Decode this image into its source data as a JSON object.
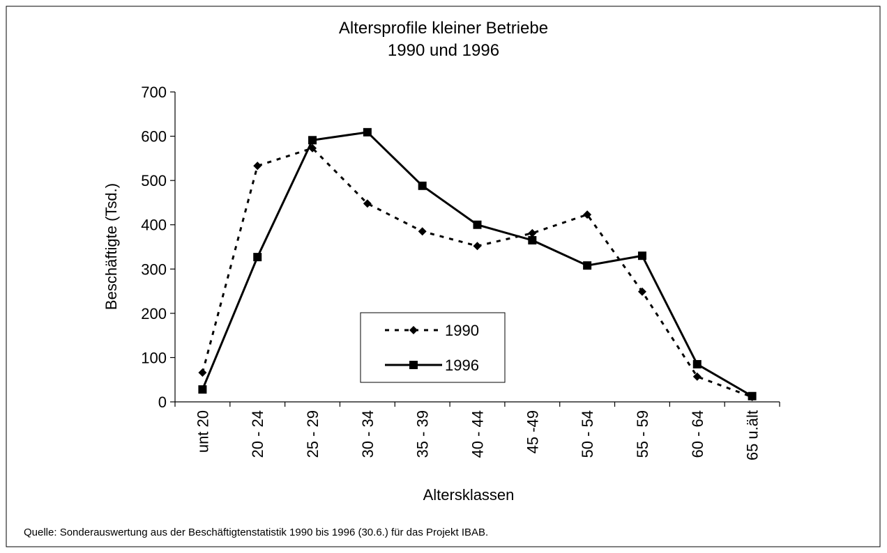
{
  "chart_data": {
    "type": "line",
    "title": "Altersprofile kleiner Betriebe",
    "subtitle": "1990 und 1996",
    "x_label": "Altersklassen",
    "y_label": "Beschäftigte (Tsd.)",
    "source": "Quelle: Sonderauswertung aus der Beschäftigtenstatistik 1990 bis 1996 (30.6.) für das Projekt IBAB.",
    "categories": [
      "unt 20",
      "20 - 24",
      "25 - 29",
      "30 - 34",
      "35 - 39",
      "40 - 44",
      "45 -49",
      "50 - 54",
      "55 - 59",
      "60 - 64",
      "65 u.ält"
    ],
    "series": [
      {
        "name": "1990",
        "color": "#000000",
        "line_style": "dotted",
        "marker": "diamond",
        "values": [
          66,
          533,
          573,
          448,
          385,
          352,
          381,
          423,
          249,
          57,
          11
        ]
      },
      {
        "name": "1996",
        "color": "#000000",
        "line_style": "solid",
        "marker": "square",
        "values": [
          28,
          327,
          591,
          609,
          488,
          400,
          365,
          308,
          330,
          85,
          13
        ]
      }
    ],
    "ylim": [
      0,
      700
    ],
    "yticks": [
      0,
      100,
      200,
      300,
      400,
      500,
      600,
      700
    ],
    "grid": false
  }
}
